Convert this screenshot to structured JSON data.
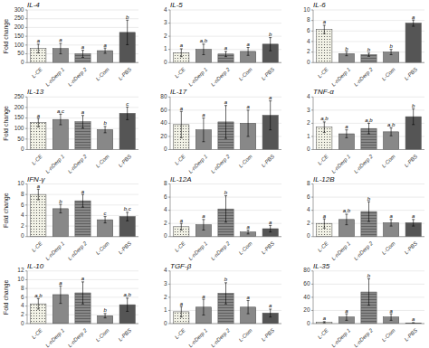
{
  "chart_data": [
    {
      "type": "bar",
      "title": "IL-4",
      "y_label": "Fold change",
      "categories": [
        "L-CE",
        "L-nDerp 1",
        "L-nDerp 2",
        "L-Com",
        "L-PBS"
      ],
      "values": [
        80,
        80,
        50,
        68,
        172
      ],
      "errors": [
        25,
        30,
        20,
        15,
        70
      ],
      "annotations": [
        "a",
        "a",
        "a",
        "a",
        "b"
      ],
      "colors": [
        "#f2f2e6",
        "#888888",
        "#888888",
        "#888888",
        "#555555"
      ],
      "ylim": [
        0,
        300
      ],
      "yticks": [
        0,
        50,
        100,
        150,
        200,
        250,
        300
      ],
      "grid": true
    },
    {
      "type": "bar",
      "title": "IL-5",
      "categories": [
        "L-CE",
        "L-nDerp 1",
        "L-nDerp 2",
        "L-Com",
        "L-PBS"
      ],
      "values": [
        0.75,
        1.0,
        0.65,
        0.85,
        1.4
      ],
      "errors": [
        0.3,
        0.4,
        0.2,
        0.3,
        0.5
      ],
      "annotations": [
        "a",
        "a,b",
        "a",
        "a",
        "b"
      ],
      "colors": [
        "#f2f2e6",
        "#888888",
        "#888888",
        "#888888",
        "#555555"
      ],
      "ylim": [
        0,
        4
      ],
      "yticks": [
        0,
        1,
        2,
        3,
        4
      ],
      "grid": true
    },
    {
      "type": "bar",
      "title": "IL-6",
      "categories": [
        "L-CE",
        "L-nDerp 1",
        "L-nDerp 2",
        "L-Com",
        "L-PBS"
      ],
      "values": [
        6.3,
        1.7,
        1.5,
        2.0,
        7.5
      ],
      "errors": [
        0.8,
        0.4,
        0.3,
        0.5,
        0.6
      ],
      "annotations": [
        "a",
        "b",
        "b",
        "b",
        "a"
      ],
      "colors": [
        "#f2f2e6",
        "#888888",
        "#888888",
        "#888888",
        "#555555"
      ],
      "ylim": [
        0,
        10
      ],
      "yticks": [
        0,
        2,
        4,
        6,
        8,
        10
      ],
      "grid": true
    },
    {
      "type": "bar",
      "title": "IL-13",
      "y_label": "Fold change",
      "categories": [
        "L-CE",
        "L-nDerp 1",
        "L-nDerp 2",
        "L-Com",
        "L-PBS"
      ],
      "values": [
        128,
        143,
        132,
        95,
        172
      ],
      "errors": [
        20,
        25,
        30,
        15,
        30
      ],
      "annotations": [
        "a",
        "a,c",
        "a",
        "b",
        "c"
      ],
      "colors": [
        "#f2f2e6",
        "#888888",
        "#888888",
        "#888888",
        "#555555"
      ],
      "ylim": [
        0,
        250
      ],
      "yticks": [
        0,
        50,
        100,
        150,
        200,
        250
      ],
      "grid": true
    },
    {
      "type": "bar",
      "title": "IL-17",
      "categories": [
        "L-CE",
        "L-nDerp 1",
        "L-nDerp 2",
        "L-Com",
        "L-PBS"
      ],
      "values": [
        38,
        30,
        42,
        40,
        52
      ],
      "errors": [
        20,
        18,
        25,
        20,
        22
      ],
      "annotations": [
        "a",
        "a",
        "a",
        "a",
        "a"
      ],
      "colors": [
        "#f2f2e6",
        "#888888",
        "#888888",
        "#888888",
        "#555555"
      ],
      "ylim": [
        0,
        80
      ],
      "yticks": [
        0,
        20,
        40,
        60,
        80
      ],
      "grid": true
    },
    {
      "type": "bar",
      "title": "TNF-α",
      "categories": [
        "L-CE",
        "L-nDerp 1",
        "L-nDerp 2",
        "L-Com",
        "L-PBS"
      ],
      "values": [
        1.7,
        1.2,
        1.6,
        1.35,
        2.5
      ],
      "errors": [
        0.4,
        0.3,
        0.4,
        0.3,
        0.6
      ],
      "annotations": [
        "a,b",
        "a",
        "a,b",
        "a,b",
        "b"
      ],
      "colors": [
        "#f2f2e6",
        "#888888",
        "#888888",
        "#888888",
        "#555555"
      ],
      "ylim": [
        0,
        4
      ],
      "yticks": [
        0,
        1,
        2,
        3,
        4
      ],
      "grid": true
    },
    {
      "type": "bar",
      "title": "IFN-γ",
      "y_label": "Fold change",
      "categories": [
        "L-CE",
        "L-nDerp 1",
        "L-nDerp 2",
        "L-Com",
        "L-PBS"
      ],
      "values": [
        8.0,
        5.3,
        6.8,
        3.2,
        3.8
      ],
      "errors": [
        1.0,
        0.8,
        1.2,
        0.6,
        0.8
      ],
      "annotations": [
        "a",
        "b",
        "a",
        "c",
        "b,c"
      ],
      "colors": [
        "#f2f2e6",
        "#888888",
        "#888888",
        "#888888",
        "#555555"
      ],
      "ylim": [
        0,
        10
      ],
      "yticks": [
        0,
        2,
        4,
        6,
        8,
        10
      ],
      "grid": true
    },
    {
      "type": "bar",
      "title": "IL-12A",
      "categories": [
        "L-CE",
        "L-nDerp 1",
        "L-nDerp 2",
        "L-Com",
        "L-PBS"
      ],
      "values": [
        1.5,
        1.8,
        4.2,
        0.7,
        1.2
      ],
      "errors": [
        0.5,
        0.8,
        2.0,
        0.3,
        0.5
      ],
      "annotations": [
        "a",
        "a",
        "b",
        "a",
        "a"
      ],
      "colors": [
        "#f2f2e6",
        "#888888",
        "#888888",
        "#888888",
        "#555555"
      ],
      "ylim": [
        0,
        8
      ],
      "yticks": [
        0,
        2,
        4,
        6,
        8
      ],
      "grid": true
    },
    {
      "type": "bar",
      "title": "IL-12B",
      "categories": [
        "L-CE",
        "L-nDerp 1",
        "L-nDerp 2",
        "L-Com",
        "L-PBS"
      ],
      "values": [
        2.0,
        2.6,
        3.8,
        2.1,
        2.1
      ],
      "errors": [
        0.7,
        0.8,
        1.5,
        0.5,
        0.5
      ],
      "annotations": [
        "a",
        "a,b",
        "b",
        "a",
        "a"
      ],
      "colors": [
        "#f2f2e6",
        "#888888",
        "#888888",
        "#888888",
        "#555555"
      ],
      "ylim": [
        0,
        8
      ],
      "yticks": [
        0,
        2,
        4,
        6,
        8
      ],
      "grid": true
    },
    {
      "type": "bar",
      "title": "IL-10",
      "y_label": "Fold change",
      "categories": [
        "L-CE",
        "L-nDerp 1",
        "L-nDerp 2",
        "L-Com",
        "L-PBS"
      ],
      "values": [
        4.5,
        6.6,
        7.0,
        1.8,
        4.3
      ],
      "errors": [
        1.2,
        2.0,
        2.5,
        0.5,
        1.5
      ],
      "annotations": [
        "a,b",
        "a",
        "a",
        "b",
        "a,b"
      ],
      "colors": [
        "#f2f2e6",
        "#888888",
        "#888888",
        "#888888",
        "#555555"
      ],
      "ylim": [
        0,
        12
      ],
      "yticks": [
        0,
        2,
        4,
        6,
        8,
        10,
        12
      ],
      "grid": true
    },
    {
      "type": "bar",
      "title": "TGF-β",
      "categories": [
        "L-CE",
        "L-nDerp 1",
        "L-nDerp 2",
        "L-Com",
        "L-PBS"
      ],
      "values": [
        0.9,
        1.25,
        2.3,
        1.25,
        0.8
      ],
      "errors": [
        0.4,
        0.6,
        0.8,
        0.5,
        0.3
      ],
      "annotations": [
        "a",
        "a",
        "b",
        "a",
        "a"
      ],
      "colors": [
        "#f2f2e6",
        "#888888",
        "#888888",
        "#888888",
        "#555555"
      ],
      "ylim": [
        0,
        4
      ],
      "yticks": [
        0,
        1,
        2,
        3,
        4
      ],
      "grid": true
    },
    {
      "type": "bar",
      "title": "IL-35",
      "categories": [
        "L-CE",
        "L-nDerp 1",
        "L-nDerp 2",
        "L-Com",
        "L-PBS"
      ],
      "values": [
        2.0,
        10.0,
        48.0,
        10.0,
        1.0
      ],
      "errors": [
        1.0,
        5.0,
        20.0,
        5.0,
        0.5
      ],
      "annotations": [
        "a",
        "a",
        "b",
        "a",
        "a"
      ],
      "colors": [
        "#f2f2e6",
        "#888888",
        "#888888",
        "#888888",
        "#555555"
      ],
      "ylim": [
        0,
        80
      ],
      "yticks": [
        0,
        20,
        40,
        60,
        80
      ],
      "grid": true
    }
  ]
}
